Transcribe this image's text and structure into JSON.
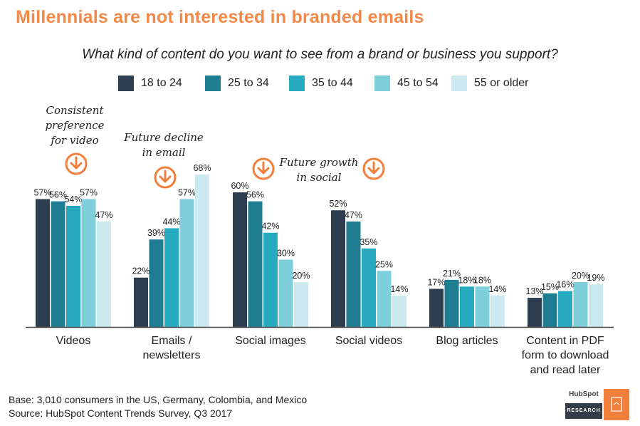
{
  "title": "Millennials are not interested in branded emails",
  "subtitle": "What kind of content do you want to see from a brand or business you support?",
  "colors": {
    "title": "#f08a4b",
    "accent": "#f0803c",
    "series": [
      "#2e3e51",
      "#1f7d92",
      "#27a9c0",
      "#7fcfdb",
      "#cce9ef"
    ]
  },
  "annotations": [
    {
      "lines": [
        "Consistent",
        "preference",
        "for video"
      ],
      "icon": "down-arrow-circle-icon"
    },
    {
      "lines": [
        "Future decline",
        "in email"
      ],
      "icon": "down-arrow-circle-icon"
    },
    {
      "lines": [
        "Future growth",
        "in social"
      ],
      "icon": "down-arrow-circle-icon"
    }
  ],
  "footnote": {
    "base": "Base: 3,010 consumers in the US, Germany, Colombia, and Mexico",
    "source": "Source: HubSpot Content Trends Survey, Q3 2017"
  },
  "logo": {
    "name": "HubSpot",
    "sub": "RESEARCH"
  },
  "chart_data": {
    "type": "bar",
    "title": "Millennials are not interested in branded emails",
    "subtitle": "What kind of content do you want to see from a brand or business you support?",
    "categories": [
      [
        "Videos"
      ],
      [
        "Emails /",
        "newsletters"
      ],
      [
        "Social images"
      ],
      [
        "Social videos"
      ],
      [
        "Blog articles"
      ],
      [
        "Content in PDF",
        "form to download",
        "and read later"
      ]
    ],
    "series": [
      {
        "name": "18 to 24",
        "values": [
          57,
          22,
          60,
          52,
          17,
          13
        ]
      },
      {
        "name": "25 to 34",
        "values": [
          56,
          39,
          56,
          47,
          21,
          15
        ]
      },
      {
        "name": "35 to 44",
        "values": [
          54,
          44,
          42,
          35,
          18,
          16
        ]
      },
      {
        "name": "45 to 54",
        "values": [
          57,
          57,
          30,
          25,
          18,
          20
        ]
      },
      {
        "name": "55 or older",
        "values": [
          47,
          68,
          20,
          14,
          14,
          19
        ]
      }
    ],
    "value_suffix": "%",
    "ylim": [
      0,
      68
    ],
    "legend": "top",
    "grid": false,
    "xlabel": "",
    "ylabel": ""
  }
}
